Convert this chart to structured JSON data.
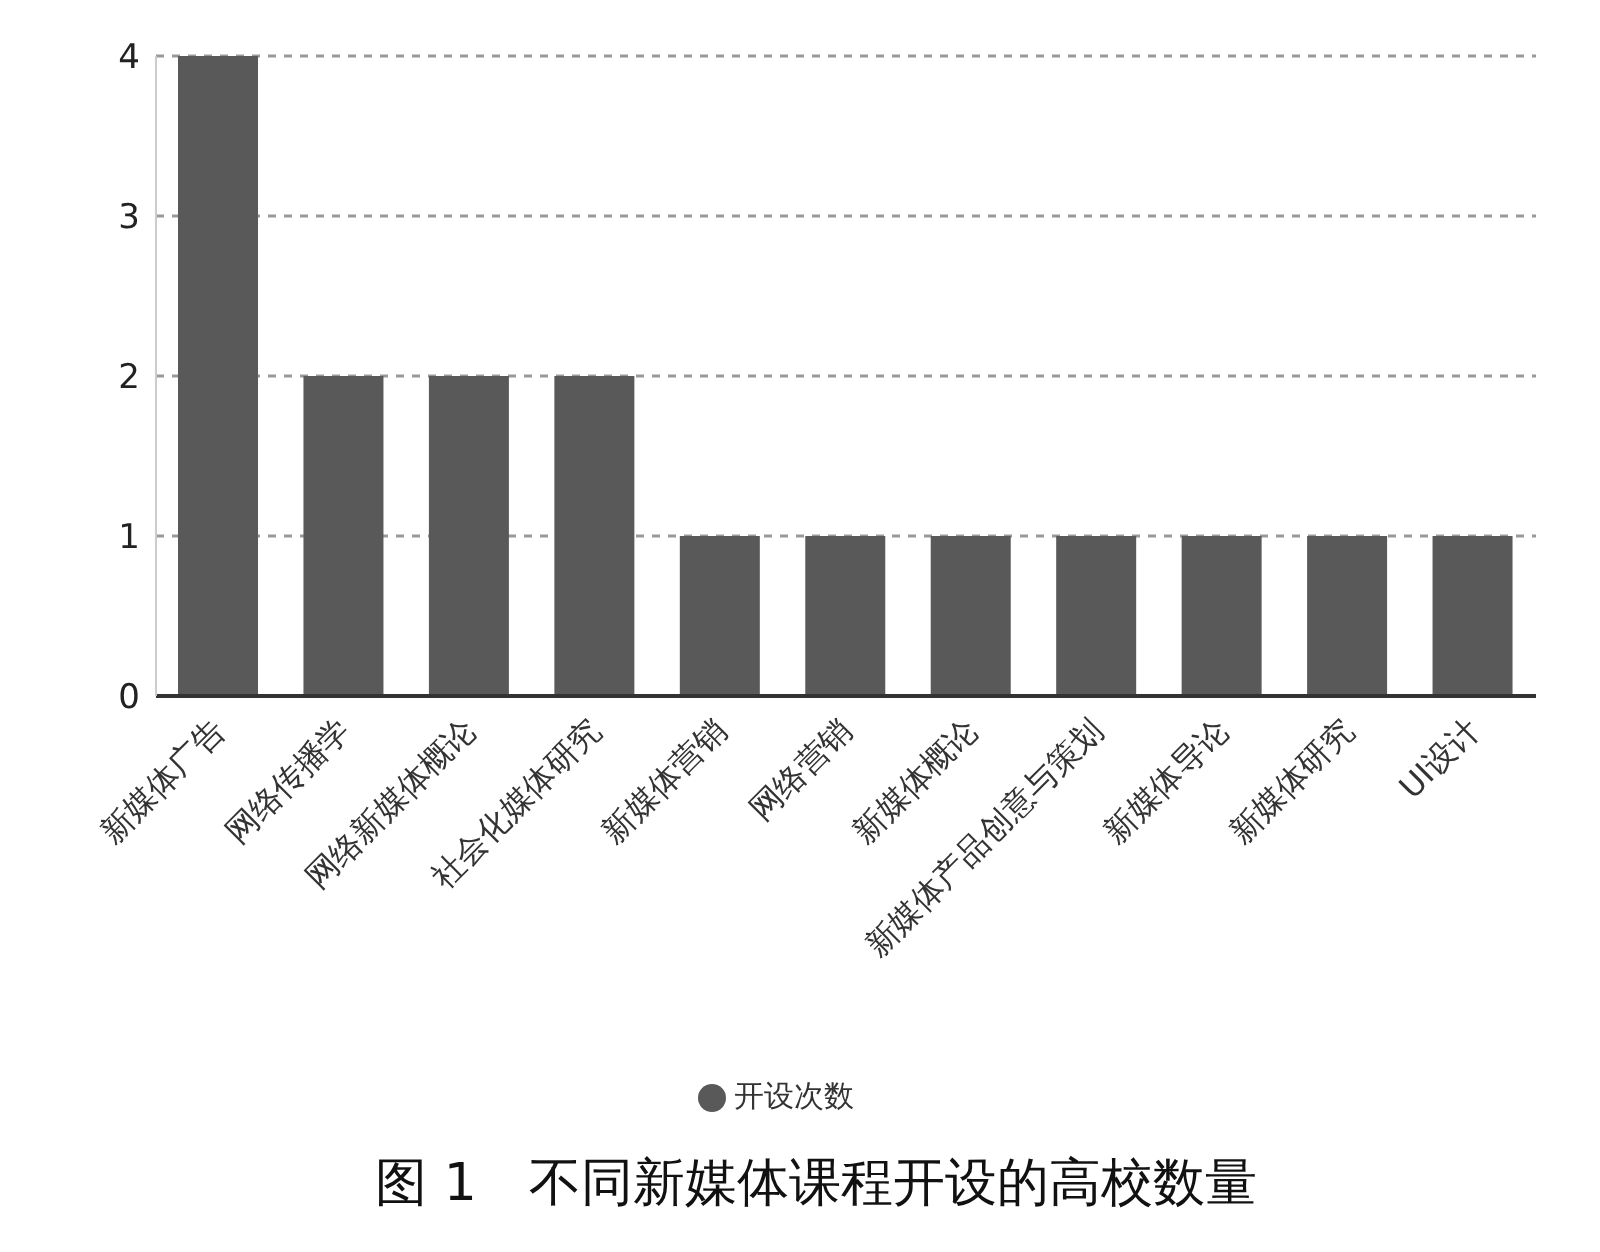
{
  "chart_data": {
    "type": "bar",
    "title": "图 1　不同新媒体课程开设的高校数量",
    "categories": [
      "新媒体广告",
      "网络传播学",
      "网络新媒体概论",
      "社会化媒体研究",
      "新媒体营销",
      "网络营销",
      "新媒体概论",
      "新媒体产品创意与策划",
      "新媒体导论",
      "新媒体研究",
      "UI设计"
    ],
    "series": [
      {
        "name": "开设次数",
        "color": "#595959",
        "values": [
          4,
          2,
          2,
          2,
          1,
          1,
          1,
          1,
          1,
          1,
          1
        ]
      }
    ],
    "ylim": [
      0,
      4
    ],
    "yticks": [
      0,
      1,
      2,
      3,
      4
    ],
    "grid": "y",
    "legend": "bottom"
  }
}
